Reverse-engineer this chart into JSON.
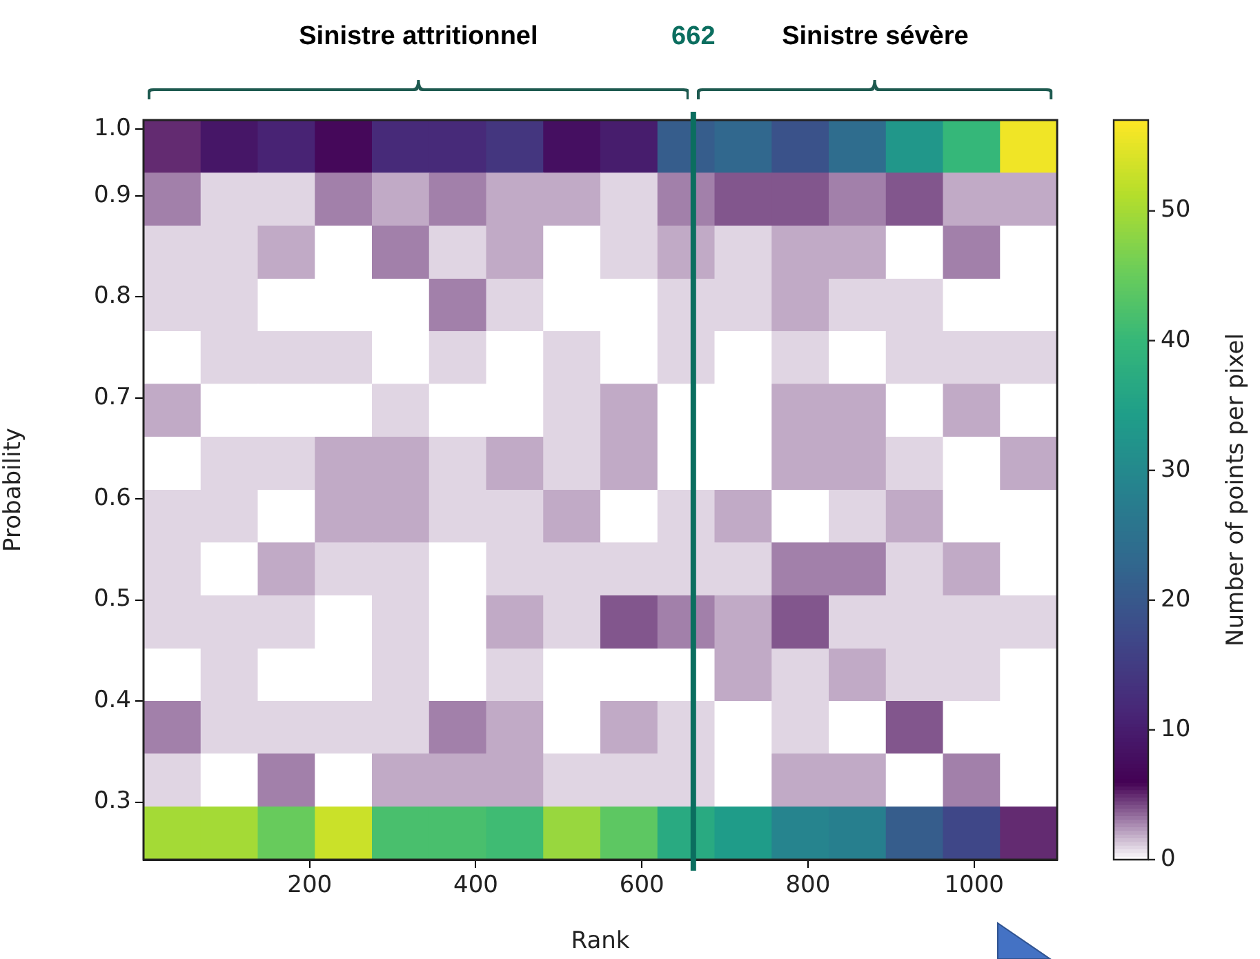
{
  "chart_data": {
    "type": "heatmap",
    "xlabel": "Rank",
    "ylabel": "Probability",
    "clabel": "Number of points per pixel",
    "annotations": [
      "Sinistre attritionnel",
      "Sinistre sévère"
    ],
    "x": [
      34.4,
      103.1,
      171.9,
      240.6,
      309.4,
      378.1,
      446.9,
      515.6,
      584.4,
      653.1,
      721.9,
      790.6,
      859.4,
      928.1,
      996.9,
      1065.6
    ],
    "y": [
      0.949,
      0.897,
      0.844,
      0.792,
      0.74,
      0.688,
      0.635,
      0.583,
      0.531,
      0.478,
      0.426,
      0.374,
      0.322,
      0.269
    ],
    "xlim": [
      0,
      1100
    ],
    "xticks": [
      200,
      400,
      600,
      800,
      1000
    ],
    "ylim": [
      0.243,
      0.975
    ],
    "yticks": [
      0.3,
      0.4,
      0.5,
      0.6,
      0.7,
      0.8,
      0.9,
      {
        "value": 0.966,
        "label": "1.0"
      }
    ],
    "clim": [
      0,
      57
    ],
    "cticks": [
      0,
      10,
      20,
      30,
      40,
      50
    ],
    "ref_lines": [
      {
        "axis": "x",
        "value": 662,
        "label": "662",
        "color": "#0b6e5f"
      }
    ],
    "cells": [
      [
        5,
        9,
        11,
        7,
        12,
        12,
        14,
        8,
        10,
        21,
        23,
        19,
        24,
        33,
        40,
        56
      ],
      [
        3,
        1,
        1,
        3,
        2,
        3,
        2,
        2,
        1,
        3,
        4,
        4,
        3,
        4,
        2,
        2
      ],
      [
        1,
        1,
        2,
        0,
        3,
        1,
        2,
        0,
        1,
        2,
        1,
        2,
        2,
        0,
        3,
        0
      ],
      [
        1,
        1,
        0,
        0,
        0,
        3,
        1,
        0,
        0,
        1,
        1,
        2,
        1,
        1,
        0,
        0
      ],
      [
        0,
        1,
        1,
        1,
        0,
        1,
        0,
        1,
        0,
        1,
        0,
        1,
        0,
        1,
        1,
        1
      ],
      [
        2,
        0,
        0,
        0,
        1,
        0,
        0,
        1,
        2,
        0,
        0,
        2,
        2,
        0,
        2,
        0
      ],
      [
        0,
        1,
        1,
        2,
        2,
        1,
        2,
        1,
        2,
        0,
        0,
        2,
        2,
        1,
        0,
        2
      ],
      [
        1,
        1,
        0,
        2,
        2,
        1,
        1,
        2,
        0,
        1,
        2,
        0,
        1,
        2,
        0,
        0
      ],
      [
        1,
        0,
        2,
        1,
        1,
        0,
        1,
        1,
        1,
        1,
        1,
        3,
        3,
        1,
        2,
        0
      ],
      [
        1,
        1,
        1,
        0,
        1,
        0,
        2,
        1,
        4,
        3,
        2,
        4,
        1,
        1,
        1,
        1
      ],
      [
        0,
        1,
        0,
        0,
        1,
        0,
        1,
        0,
        0,
        0,
        2,
        1,
        2,
        1,
        1,
        0
      ],
      [
        3,
        1,
        1,
        1,
        1,
        3,
        2,
        0,
        2,
        1,
        0,
        1,
        0,
        4,
        0,
        0
      ],
      [
        1,
        0,
        3,
        0,
        2,
        2,
        2,
        1,
        1,
        1,
        0,
        2,
        2,
        0,
        3,
        0
      ],
      [
        50,
        50,
        45,
        53,
        42,
        42,
        41,
        49,
        44,
        37,
        34,
        29,
        28,
        21,
        17,
        5
      ]
    ]
  }
}
